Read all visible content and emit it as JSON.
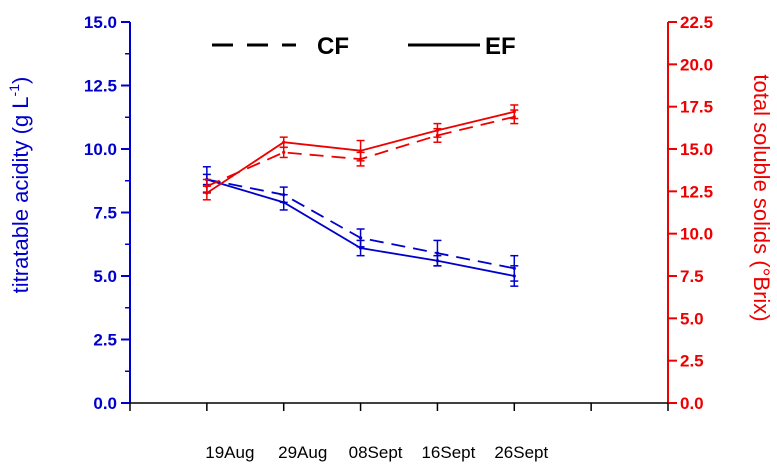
{
  "chart_data": {
    "type": "line",
    "categories": [
      "19Aug",
      "29Aug",
      "08Sept",
      "16Sept",
      "26Sept"
    ],
    "y_left": {
      "label": "titratable acidity (g L",
      "label_superscript": "-1",
      "label_close": ")",
      "range": [
        0,
        15
      ],
      "ticks": [
        "0.0",
        "2.5",
        "5.0",
        "7.5",
        "10.0",
        "12.5",
        "15.0"
      ],
      "color": "#0000cc"
    },
    "y_right": {
      "label": "total soluble solids (°Brix)",
      "range": [
        0,
        22.5
      ],
      "ticks": [
        "0.0",
        "2.5",
        "5.0",
        "7.5",
        "10.0",
        "12.5",
        "15.0",
        "17.5",
        "20.0",
        "22.5"
      ],
      "color": "#ee0000"
    },
    "legend": [
      {
        "name": "CF",
        "style": "dashed"
      },
      {
        "name": "EF",
        "style": "solid"
      }
    ],
    "series": [
      {
        "name": "CF",
        "variable": "titratable acidity",
        "axis": "left",
        "style": "dashed",
        "color": "#0000cc",
        "values": [
          8.8,
          8.2,
          6.5,
          5.9,
          5.3
        ],
        "errors": [
          0.5,
          0.3,
          0.35,
          0.5,
          0.5
        ]
      },
      {
        "name": "EF",
        "variable": "titratable acidity",
        "axis": "left",
        "style": "solid",
        "color": "#0000cc",
        "values": [
          8.8,
          7.9,
          6.1,
          5.6,
          5.0
        ],
        "errors": [
          0.2,
          0.3,
          0.3,
          0.2,
          0.4
        ]
      },
      {
        "name": "CF",
        "variable": "total soluble solids",
        "axis": "right",
        "style": "dashed",
        "color": "#ee0000",
        "values": [
          12.8,
          14.8,
          14.4,
          15.8,
          16.9
        ],
        "errors": [
          0.4,
          0.3,
          0.4,
          0.4,
          0.4
        ]
      },
      {
        "name": "EF",
        "variable": "total soluble solids",
        "axis": "right",
        "style": "solid",
        "color": "#ee0000",
        "values": [
          12.4,
          15.4,
          14.9,
          16.1,
          17.2
        ],
        "errors": [
          0.4,
          0.3,
          0.6,
          0.4,
          0.4
        ]
      }
    ],
    "grid": false
  }
}
